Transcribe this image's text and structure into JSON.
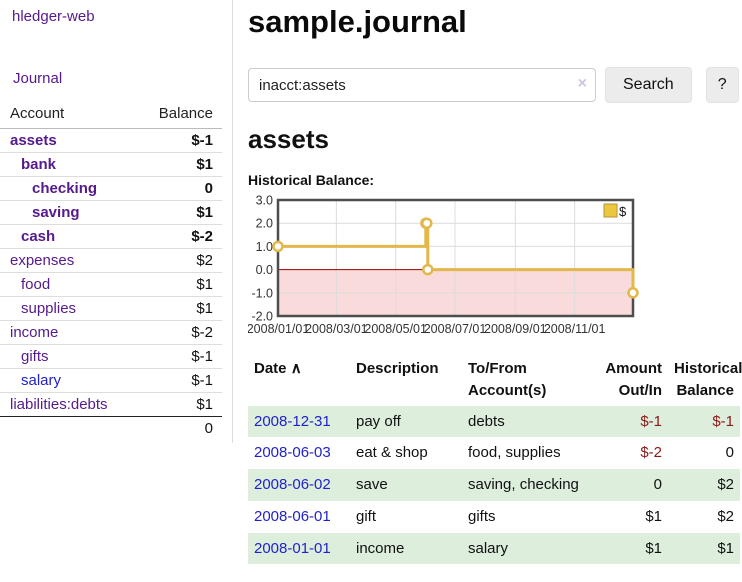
{
  "colors": {
    "link_purple": "#551a8b",
    "link_blue": "#2222cc",
    "negative_strong": "#8b1717",
    "negative_light": "#c26e6e",
    "row_stripe_green": "#ddeedd"
  },
  "sidebar": {
    "app_title": "hledger-web",
    "nav": {
      "journal": "Journal"
    },
    "accounts_table": {
      "headers": [
        "Account",
        "Balance"
      ],
      "rows": [
        {
          "account": "assets",
          "level": 0,
          "bold": true,
          "balance": "$-1",
          "neg": "strong"
        },
        {
          "account": "bank",
          "level": 1,
          "bold": true,
          "balance": "$1"
        },
        {
          "account": "checking",
          "level": 2,
          "bold": true,
          "balance": "0"
        },
        {
          "account": "saving",
          "level": 2,
          "bold": true,
          "balance": "$1"
        },
        {
          "account": "cash",
          "level": 1,
          "bold": true,
          "balance": "$-2",
          "neg": "strong"
        },
        {
          "account": "expenses",
          "level": 0,
          "bold": false,
          "balance": "$2"
        },
        {
          "account": "food",
          "level": 1,
          "bold": false,
          "balance": "$1"
        },
        {
          "account": "supplies",
          "level": 1,
          "bold": false,
          "balance": "$1"
        },
        {
          "account": "income",
          "level": 0,
          "bold": false,
          "balance": "$-2",
          "neg": "light"
        },
        {
          "account": "gifts",
          "level": 1,
          "bold": false,
          "balance": "$-1",
          "neg": "light"
        },
        {
          "account": "salary",
          "level": 1,
          "bold": false,
          "balance": "$-1",
          "neg": "light",
          "link": "blue"
        },
        {
          "account": "liabilities:debts",
          "level": 0,
          "bold": false,
          "balance": "$1"
        }
      ],
      "total": "0"
    }
  },
  "header": {
    "title": "sample.journal"
  },
  "search": {
    "query": "inacct:assets",
    "clear_icon": "×",
    "button_label": "Search",
    "help_label": "?"
  },
  "account_page": {
    "title": "assets",
    "chart_label": "Historical Balance:"
  },
  "chart_data": {
    "type": "line",
    "subtype": "step-after",
    "title": "Historical Balance",
    "xlim": [
      "2008-01-01",
      "2008-12-31"
    ],
    "ylim": [
      -2.0,
      3.0
    ],
    "y_ticks": [
      3.0,
      2.0,
      1.0,
      0.0,
      -1.0,
      -2.0
    ],
    "x_tick_labels": [
      "2008/01/01",
      "2008/03/01",
      "2008/05/01",
      "2008/07/01",
      "2008/09/01",
      "2008/11/01"
    ],
    "grid": true,
    "legend_position": "top-right",
    "series": [
      {
        "name": "$",
        "points": [
          [
            "2008-01-01",
            1
          ],
          [
            "2008-06-01",
            2
          ],
          [
            "2008-06-02",
            2
          ],
          [
            "2008-06-03",
            0
          ],
          [
            "2008-12-31",
            -1
          ]
        ]
      }
    ],
    "colors": {
      "line": "#e3b84a",
      "marker_fill": "#ffffff",
      "legend_fill": "#ecc63f",
      "legend_stroke": "#b69537",
      "negative_area": "#fadbdb",
      "zero_line": "#990000",
      "grid": "#dcdcdc",
      "border": "#4d4d4d"
    }
  },
  "register": {
    "headers": {
      "date": "Date",
      "sort_icon": "∧",
      "description": "Description",
      "tofrom": "To/From\nAccount(s)",
      "amount": "Amount\nOut/In",
      "balance": "Historical\nBalance"
    },
    "rows": [
      {
        "date": "2008-12-31",
        "description": "pay off",
        "accounts": "debts",
        "amount": "$-1",
        "amount_neg": true,
        "balance": "$-1",
        "balance_neg": true,
        "stripe": true
      },
      {
        "date": "2008-06-03",
        "description": "eat & shop",
        "accounts": "food, supplies",
        "amount": "$-2",
        "amount_neg": true,
        "balance": "0",
        "balance_neg": false,
        "stripe": false
      },
      {
        "date": "2008-06-02",
        "description": "save",
        "accounts": "saving, checking",
        "amount": "0",
        "amount_neg": false,
        "balance": "$2",
        "balance_neg": false,
        "stripe": true
      },
      {
        "date": "2008-06-01",
        "description": "gift",
        "accounts": "gifts",
        "amount": "$1",
        "amount_neg": false,
        "balance": "$2",
        "balance_neg": false,
        "stripe": false
      },
      {
        "date": "2008-01-01",
        "description": "income",
        "accounts": "salary",
        "amount": "$1",
        "amount_neg": false,
        "balance": "$1",
        "balance_neg": false,
        "stripe": true
      }
    ]
  }
}
